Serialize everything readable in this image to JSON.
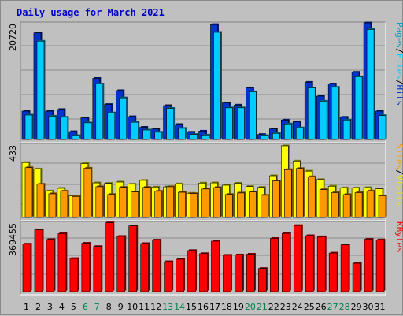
{
  "chart_data": {
    "type": "bar",
    "title": "Daily usage for March 2021",
    "categories": [
      "1",
      "2",
      "3",
      "4",
      "5",
      "6",
      "7",
      "8",
      "9",
      "10",
      "11",
      "12",
      "13",
      "14",
      "15",
      "16",
      "17",
      "18",
      "19",
      "20",
      "21",
      "22",
      "23",
      "24",
      "25",
      "26",
      "27",
      "28",
      "29",
      "30",
      "31"
    ],
    "weekend_days": [
      "6",
      "7",
      "13",
      "14",
      "20",
      "21",
      "27",
      "28"
    ],
    "grid": true,
    "panels": [
      {
        "name": "hits-files-pages",
        "max_label": "20720",
        "ylim": [
          0,
          20720
        ],
        "legend": [
          "Pages",
          "/",
          "Files",
          "/",
          "Hits"
        ],
        "series": [
          {
            "name": "Hits",
            "color": "#0033cc",
            "values": [
              5100,
              19200,
              5100,
              5400,
              1400,
              3900,
              11000,
              6300,
              8800,
              4100,
              2200,
              1900,
              6100,
              2700,
              1300,
              1500,
              20700,
              6600,
              6200,
              9300,
              900,
              1900,
              3500,
              3200,
              10300,
              7800,
              10000,
              4000,
              12100,
              21000,
              5100
            ]
          },
          {
            "name": "Files",
            "color": "#00ccff",
            "values": [
              4400,
              17700,
              4200,
              4000,
              700,
              3000,
              10000,
              4800,
              7500,
              3100,
              1700,
              1300,
              5600,
              2000,
              900,
              800,
              19300,
              5700,
              5700,
              8600,
              700,
              1100,
              2800,
              2100,
              9300,
              6900,
              9400,
              3500,
              11300,
              19800,
              4300
            ]
          }
        ]
      },
      {
        "name": "visits-sites",
        "max_label": "433",
        "ylim": [
          0,
          433
        ],
        "legend": [
          "Sites",
          "/",
          "Visits"
        ],
        "series": [
          {
            "name": "Visits",
            "color": "#ffff00",
            "values": [
              332,
              293,
              160,
              176,
              131,
              326,
              209,
              206,
              214,
              201,
              224,
              184,
              185,
              203,
              146,
              208,
              209,
              195,
              207,
              187,
              182,
              252,
              433,
              341,
              280,
              229,
              189,
              179,
              178,
              180,
              173
            ]
          },
          {
            "name": "Sites",
            "color": "#ff9900",
            "values": [
              301,
              201,
              143,
              159,
              127,
              298,
              186,
              139,
              182,
              154,
              182,
              158,
              186,
              152,
              144,
              172,
              181,
              139,
              148,
              154,
              134,
              221,
              289,
              296,
              246,
              168,
              150,
              138,
              150,
              160,
              131
            ]
          }
        ]
      },
      {
        "name": "kbytes",
        "max_label": "369455",
        "ylim": [
          0,
          369455
        ],
        "legend": [
          "KBytes"
        ],
        "series": [
          {
            "name": "KBytes",
            "color": "#ff0000",
            "values": [
              259000,
              337000,
              284000,
              316000,
              180000,
              264000,
              246000,
              375000,
              301000,
              358000,
              262000,
              281000,
              163000,
              176000,
              224000,
              207000,
              275000,
              198000,
              200000,
              204000,
              126000,
              290000,
              317000,
              360000,
              305000,
              299000,
              210000,
              255000,
              154000,
              286000,
              282000
            ]
          }
        ]
      }
    ]
  },
  "colors": {
    "background": "#c0c0c0",
    "title": "#0000cc",
    "weekend_day": "#00804c",
    "legend_slash": "#000000"
  }
}
